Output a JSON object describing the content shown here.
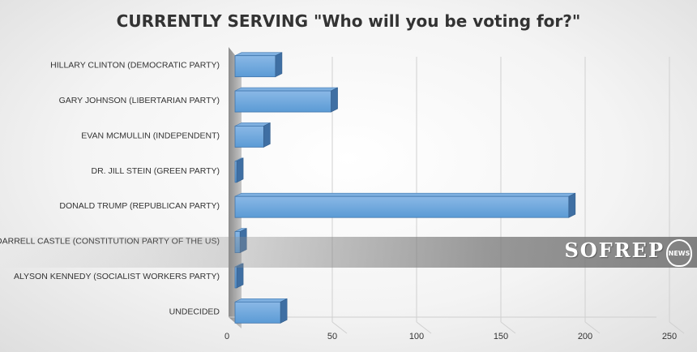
{
  "chart_data": {
    "type": "bar",
    "orientation": "horizontal",
    "title": "CURRENTLY SERVING \"Who will you be voting for?\"",
    "categories": [
      "HILLARY CLINTON (DEMOCRATIC PARTY)",
      "GARY JOHNSON (LIBERTARIAN PARTY)",
      "EVAN MCMULLIN (INDEPENDENT)",
      "DR. JILL STEIN (GREEN PARTY)",
      "DONALD TRUMP (REPUBLICAN PARTY)",
      "DARRELL CASTLE (CONSTITUTION PARTY OF THE US)",
      "ALYSON KENNEDY (SOCIALIST WORKERS PARTY)",
      "UNDECIDED"
    ],
    "values": [
      24,
      57,
      17,
      1,
      198,
      3,
      1,
      27
    ],
    "xlim": [
      0,
      250
    ],
    "xticks": [
      0,
      50,
      100,
      150,
      200,
      250
    ],
    "xlabel": "",
    "ylabel": "",
    "grid": true,
    "bar_color": "#5b9bd5"
  },
  "watermark": {
    "text": "SOFREP",
    "badge": "NEWS"
  }
}
